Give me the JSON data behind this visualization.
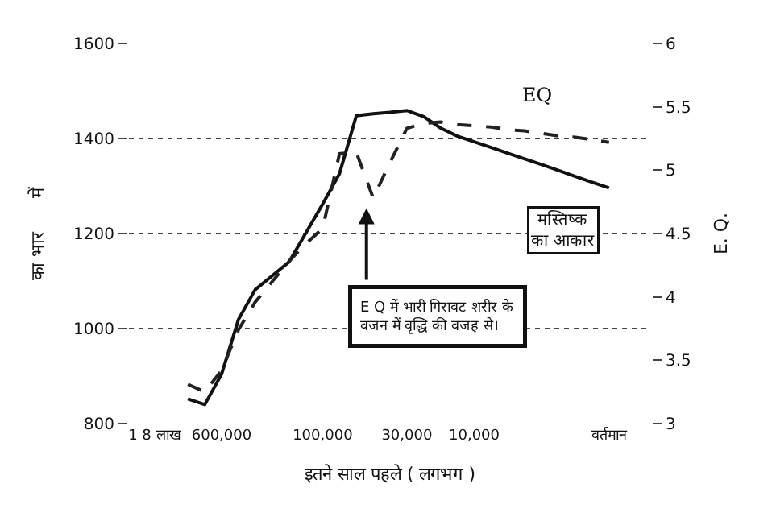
{
  "chart_data": {
    "type": "line",
    "xlabel": "इतने साल पहले ( लगभग )",
    "ylabel": "का भार      में",
    "y2label": "E. Q.",
    "categories": [
      null,
      "1 8 लाख",
      null,
      null,
      null,
      "600,000",
      null,
      null,
      null,
      null,
      null,
      "100,000",
      null,
      null,
      null,
      null,
      "30,000",
      null,
      null,
      null,
      "10,000",
      null,
      null,
      null,
      null,
      null,
      null,
      null,
      "वर्तमान",
      null,
      null
    ],
    "series": [
      {
        "name": "मस्तिष्क का आकार",
        "color": "#111111",
        "line_style": "solid",
        "values": [
          null,
          null,
          null,
          852,
          840,
          904,
          1019,
          1082,
          1111,
          1140,
          1201,
          1262,
          1326,
          1448,
          1452,
          1455,
          1459,
          1446,
          1422,
          1405,
          1393,
          1381,
          1369,
          1357,
          1345,
          1333,
          1320,
          1308,
          1296,
          null,
          null
        ]
      },
      {
        "name": "EQ",
        "color": "#222222",
        "line_style": "dashed",
        "axis": "y2",
        "values": [
          null,
          null,
          null,
          3.31,
          3.25,
          3.42,
          3.74,
          3.96,
          4.12,
          4.28,
          4.42,
          4.54,
          5.13,
          5.14,
          4.78,
          5.06,
          5.33,
          5.37,
          5.38,
          5.36,
          5.35,
          5.34,
          5.32,
          5.31,
          5.29,
          5.27,
          5.26,
          5.24,
          5.22,
          null,
          null
        ]
      }
    ],
    "ylim": [
      800,
      1600
    ],
    "yticks": [
      800,
      1000,
      1200,
      1400,
      1600
    ],
    "y2lim": [
      3,
      6
    ],
    "y2ticks": [
      3,
      3.5,
      4,
      4.5,
      5,
      5.5,
      6
    ],
    "grid": "y",
    "legend": false,
    "marker": "none",
    "annotations": [
      "E Q में भारी गिरावट शरीर के\nवजन में वृद्धि की वजह से।"
    ]
  }
}
